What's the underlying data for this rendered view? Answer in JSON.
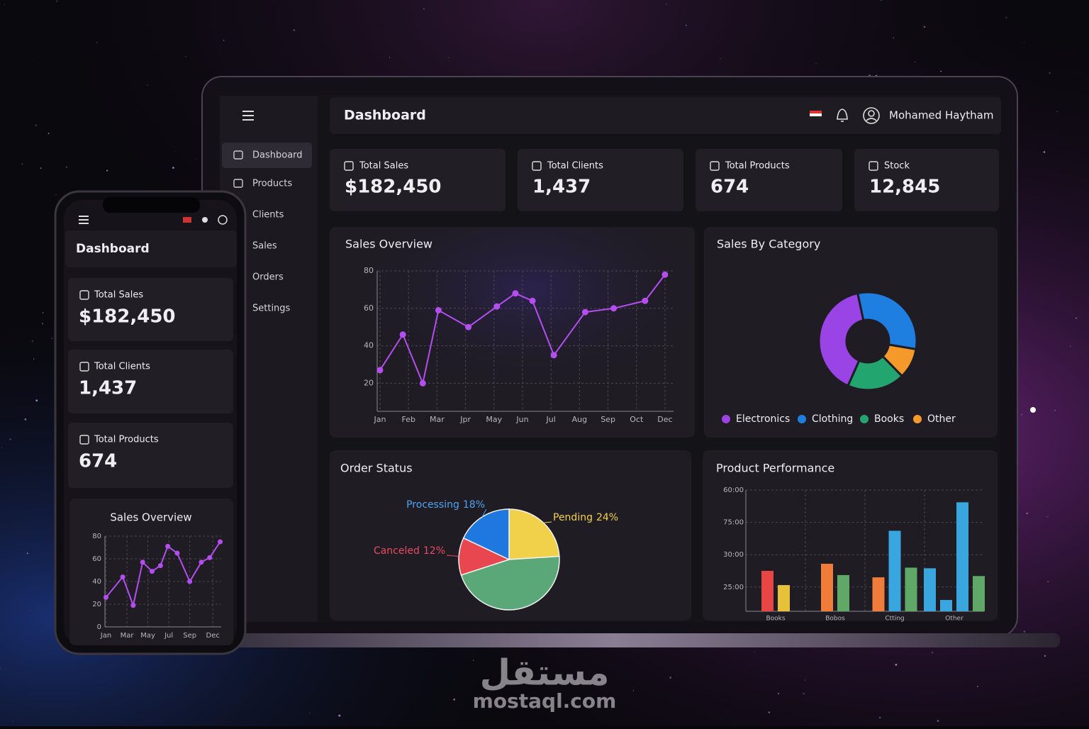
{
  "laptop": {
    "sidebar": [
      "Dashboard",
      "Products",
      "Clients",
      "Sales",
      "Orders",
      "Settings"
    ],
    "header": {
      "title": "Dashboard",
      "user": "Mohamed Haytham"
    },
    "kpis": [
      {
        "label": "Total Sales",
        "value": "$182,450"
      },
      {
        "label": "Total Clients",
        "value": "1,437"
      },
      {
        "label": "Total Products",
        "value": "674"
      },
      {
        "label": "Stock",
        "value": "12,845"
      }
    ]
  },
  "phone": {
    "header": {
      "title": "Dashboard"
    },
    "kpis": [
      {
        "label": "Total Sales",
        "value": "$182,450"
      },
      {
        "label": "Total Clients",
        "value": "1,437"
      },
      {
        "label": "Total Products",
        "value": "674"
      }
    ]
  },
  "chart_data": [
    {
      "type": "line",
      "title": "Sales Overview",
      "x": [
        0,
        0.8,
        1.5,
        2.05,
        3.1,
        4.1,
        4.75,
        5.35,
        6.1,
        7.2,
        8.2,
        9.3,
        10
      ],
      "series": [
        {
          "color": "#b44ef0",
          "values": [
            27,
            46,
            20,
            59,
            50,
            61,
            68,
            64,
            35,
            58,
            60,
            64,
            78
          ]
        }
      ],
      "xlim": [
        -0.1,
        10.3
      ],
      "xticks": [
        {
          "value": 0,
          "label": "Jan"
        },
        {
          "value": 1,
          "label": "Feb"
        },
        {
          "value": 2,
          "label": "Mar"
        },
        {
          "value": 3,
          "label": "Jpr"
        },
        {
          "value": 4,
          "label": "May"
        },
        {
          "value": 5,
          "label": "Jun"
        },
        {
          "value": 6,
          "label": "Jul"
        },
        {
          "value": 7,
          "label": "Aug"
        },
        {
          "value": 8,
          "label": "Sep"
        },
        {
          "value": 9,
          "label": "Oct"
        },
        {
          "value": 10,
          "label": "Dec"
        }
      ],
      "ylim": [
        5,
        80
      ],
      "yticks": [
        20,
        40,
        60,
        80
      ],
      "grid": true
    },
    {
      "type": "donut",
      "title": "Sales By Category",
      "categories": [
        "Electronics",
        "Clothing",
        "Books",
        "Other"
      ],
      "values": [
        40,
        31,
        19,
        10
      ],
      "colors": [
        "#9a44e6",
        "#1f7fe0",
        "#23a56f",
        "#f5992a"
      ]
    },
    {
      "type": "pie",
      "title": "Order Status",
      "categories": [
        "Pending",
        null,
        "Canceled",
        "Processing"
      ],
      "values": [
        24,
        46,
        12,
        18
      ],
      "value_labels": [
        "24%",
        null,
        "12%",
        "18%"
      ],
      "colors": [
        "#f2d14a",
        "#5aa878",
        "#e8474f",
        "#1f78e0"
      ],
      "label_colors": [
        "#f2d14a",
        null,
        "#ec4a62",
        "#4fa3f0"
      ]
    },
    {
      "type": "bar",
      "title": "Product Performance",
      "categories": [
        "Books",
        "Bobos",
        "Ctting",
        "Other"
      ],
      "series": [
        {
          "colors": [
            "#e84545",
            "#f07c3a",
            "#f07c3a",
            "#3aa6e0"
          ],
          "values": [
            1.5,
            1.72,
            1.3,
            1.58
          ]
        },
        {
          "colors": [
            "#e8c13a",
            "#5fa868",
            "#3aa6e0",
            "#3aa6e0"
          ],
          "values": [
            1.06,
            1.37,
            2.74,
            0.6
          ]
        },
        {
          "colors": [
            null,
            null,
            "#5fa868",
            "#3aa6e0"
          ],
          "values": [
            null,
            null,
            1.6,
            3.62
          ]
        },
        {
          "colors": [
            null,
            null,
            null,
            "#5fa868"
          ],
          "values": [
            null,
            null,
            null,
            1.34
          ]
        }
      ],
      "ylim": [
        0.25,
        4
      ],
      "yticks": [
        {
          "value": 4,
          "label": "60:00"
        },
        {
          "value": 3,
          "label": "75:00"
        },
        {
          "value": 2,
          "label": "30:00"
        },
        {
          "value": 1,
          "label": "25:00"
        }
      ],
      "grid": true
    },
    {
      "type": "line",
      "title": "Sales Overview",
      "x": [
        0,
        1.6,
        2.6,
        3.5,
        4.4,
        5.2,
        5.9,
        6.8,
        8.0,
        9.1,
        9.9,
        10.9
      ],
      "series": [
        {
          "color": "#b44ef0",
          "values": [
            26,
            44,
            19,
            57,
            49,
            54,
            71,
            65,
            40,
            57,
            61,
            75
          ]
        }
      ],
      "xlim": [
        -0.1,
        11
      ],
      "xticks": [
        {
          "value": 0,
          "label": "Jan"
        },
        {
          "value": 2,
          "label": "Mar"
        },
        {
          "value": 4,
          "label": "May"
        },
        {
          "value": 6,
          "label": "Jul"
        },
        {
          "value": 8,
          "label": "Sep"
        },
        {
          "value": 10.2,
          "label": "Dec"
        }
      ],
      "ylim": [
        0,
        80
      ],
      "yticks": [
        0,
        20,
        40,
        60,
        80
      ],
      "grid": true
    }
  ],
  "watermark": {
    "arabic": "مستقل",
    "url": "mostaql.com"
  }
}
